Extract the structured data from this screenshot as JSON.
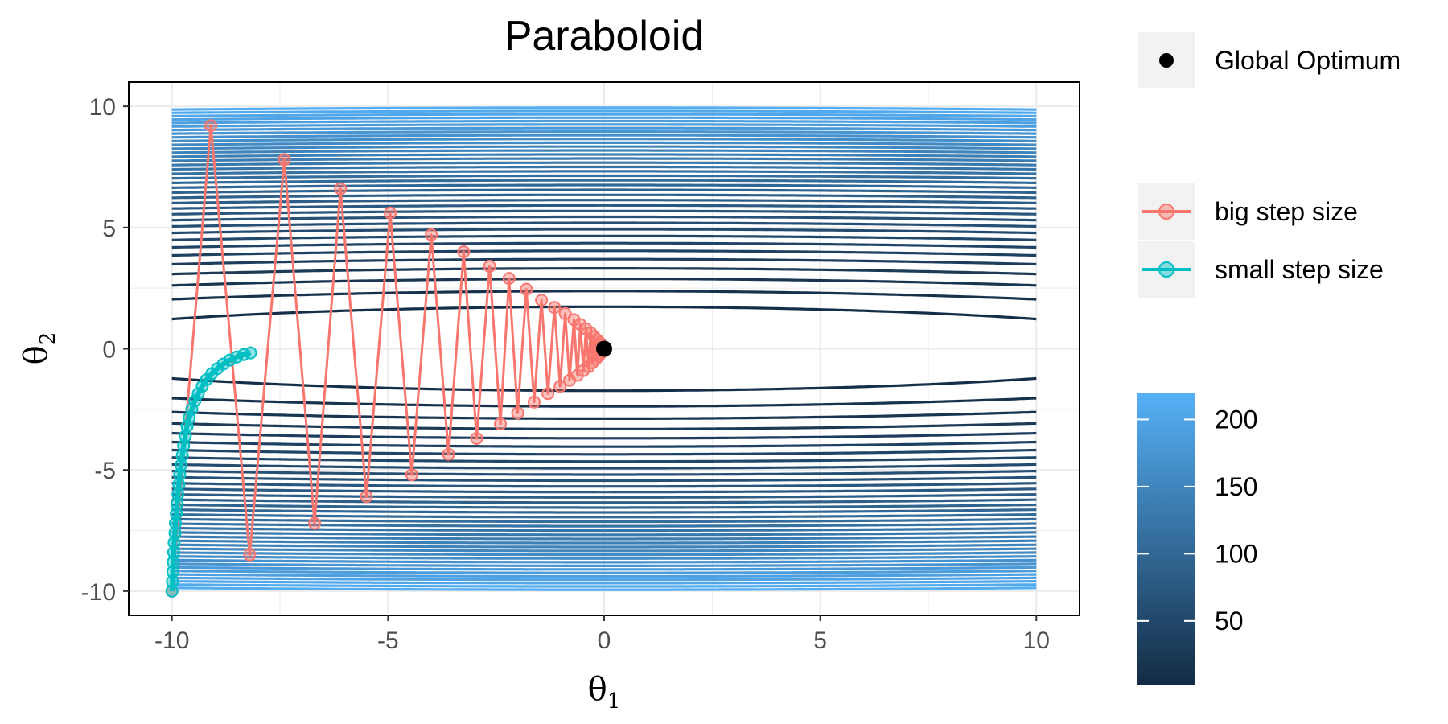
{
  "chart_data": {
    "type": "line",
    "title": "Paraboloid",
    "xlabel": "θ1",
    "ylabel": "θ2",
    "xlim": [
      -11,
      11
    ],
    "ylim": [
      -11,
      11
    ],
    "x_ticks": [
      -10,
      -5,
      0,
      5,
      10
    ],
    "y_ticks": [
      -10,
      -5,
      0,
      5,
      10
    ],
    "grid": true,
    "contours": {
      "description_of_function": "paraboloid levels",
      "levels_count": 38,
      "colorbar": {
        "min": 2,
        "max": 220,
        "ticks": [
          50,
          100,
          150,
          200
        ],
        "color_low": "#132B43",
        "color_high": "#56B1F7"
      }
    },
    "optimum": {
      "name": "Global Optimum",
      "x": 0,
      "y": 0,
      "color": "#000000"
    },
    "series": [
      {
        "name": "big step size",
        "color": "#F8766D",
        "points": [
          [
            -10,
            -10
          ],
          [
            -9.1,
            9.2
          ],
          [
            -8.2,
            -8.5
          ],
          [
            -7.4,
            7.8
          ],
          [
            -6.7,
            -7.2
          ],
          [
            -6.1,
            6.6
          ],
          [
            -5.5,
            -6.1
          ],
          [
            -4.95,
            5.6
          ],
          [
            -4.45,
            -5.2
          ],
          [
            -4.0,
            4.7
          ],
          [
            -3.6,
            -4.35
          ],
          [
            -3.25,
            4.0
          ],
          [
            -2.95,
            -3.7
          ],
          [
            -2.65,
            3.4
          ],
          [
            -2.4,
            -3.1
          ],
          [
            -2.2,
            2.9
          ],
          [
            -2.0,
            -2.65
          ],
          [
            -1.8,
            2.45
          ],
          [
            -1.62,
            -2.2
          ],
          [
            -1.45,
            2.0
          ],
          [
            -1.3,
            -1.85
          ],
          [
            -1.15,
            1.7
          ],
          [
            -1.02,
            -1.55
          ],
          [
            -0.9,
            1.45
          ],
          [
            -0.8,
            -1.3
          ],
          [
            -0.7,
            1.2
          ],
          [
            -0.62,
            -1.1
          ],
          [
            -0.55,
            1.0
          ],
          [
            -0.48,
            -0.9
          ],
          [
            -0.42,
            0.82
          ],
          [
            -0.36,
            -0.74
          ],
          [
            -0.31,
            0.66
          ],
          [
            -0.27,
            -0.58
          ],
          [
            -0.23,
            0.5
          ],
          [
            -0.19,
            -0.43
          ],
          [
            -0.16,
            0.37
          ],
          [
            -0.13,
            -0.31
          ],
          [
            -0.1,
            0.25
          ],
          [
            -0.08,
            -0.2
          ],
          [
            -0.06,
            0.15
          ],
          [
            -0.04,
            -0.1
          ],
          [
            -0.02,
            0.05
          ],
          [
            0,
            0
          ]
        ]
      },
      {
        "name": "small step size",
        "color": "#00BFC4",
        "points": [
          [
            -10,
            -10
          ],
          [
            -9.99,
            -9.6
          ],
          [
            -9.98,
            -9.2
          ],
          [
            -9.97,
            -8.8
          ],
          [
            -9.96,
            -8.4
          ],
          [
            -9.95,
            -8.0
          ],
          [
            -9.93,
            -7.6
          ],
          [
            -9.92,
            -7.2
          ],
          [
            -9.9,
            -6.8
          ],
          [
            -9.88,
            -6.4
          ],
          [
            -9.86,
            -6.0
          ],
          [
            -9.84,
            -5.6
          ],
          [
            -9.82,
            -5.2
          ],
          [
            -9.79,
            -4.8
          ],
          [
            -9.76,
            -4.4
          ],
          [
            -9.73,
            -4.0
          ],
          [
            -9.69,
            -3.6
          ],
          [
            -9.65,
            -3.2
          ],
          [
            -9.6,
            -2.85
          ],
          [
            -9.54,
            -2.5
          ],
          [
            -9.47,
            -2.15
          ],
          [
            -9.39,
            -1.85
          ],
          [
            -9.3,
            -1.55
          ],
          [
            -9.2,
            -1.28
          ],
          [
            -9.08,
            -1.03
          ],
          [
            -8.95,
            -0.82
          ],
          [
            -8.81,
            -0.63
          ],
          [
            -8.66,
            -0.47
          ],
          [
            -8.5,
            -0.34
          ],
          [
            -8.34,
            -0.24
          ],
          [
            -8.18,
            -0.17
          ]
        ]
      }
    ],
    "legend": {
      "placement": "right",
      "optimum_label": "Global Optimum",
      "series_labels": [
        "big step size",
        "small step size"
      ]
    }
  }
}
